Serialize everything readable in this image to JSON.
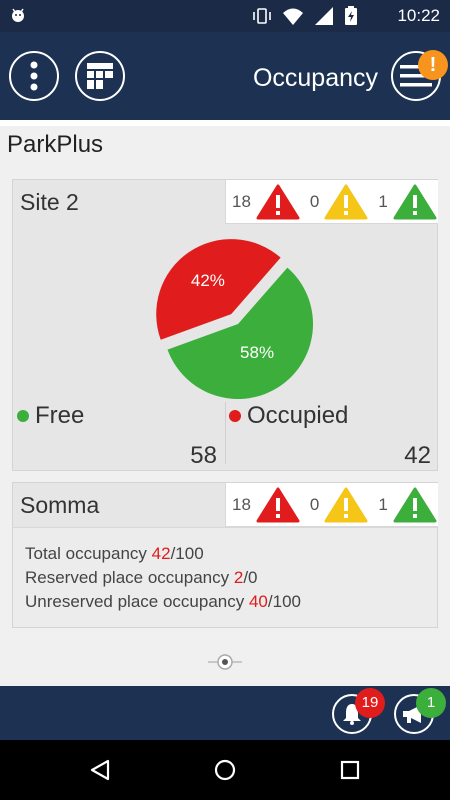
{
  "status_bar": {
    "time": "10:22",
    "icons": [
      "android-debug-icon",
      "vibrate-icon",
      "wifi-icon",
      "signal-icon",
      "battery-icon"
    ]
  },
  "app_bar": {
    "title": "Occupancy",
    "alert_badge": "!"
  },
  "org_name": "ParkPlus",
  "sites": [
    {
      "name": "Site 2",
      "alarms": [
        {
          "count": "18",
          "level": "critical",
          "color": "#e01c1c"
        },
        {
          "count": "0",
          "level": "warning",
          "color": "#f5c518"
        },
        {
          "count": "1",
          "level": "info",
          "color": "#3cae3c"
        }
      ],
      "pie": {
        "occupied_pct": 42,
        "free_pct": 58,
        "occupied_label": "42%",
        "free_label": "58%"
      },
      "free_label": "Free",
      "free_value": "58",
      "occupied_label": "Occupied",
      "occupied_value": "42"
    },
    {
      "name": "Somma",
      "alarms": [
        {
          "count": "18",
          "level": "critical",
          "color": "#e01c1c"
        },
        {
          "count": "0",
          "level": "warning",
          "color": "#f5c518"
        },
        {
          "count": "1",
          "level": "info",
          "color": "#3cae3c"
        }
      ],
      "summary": {
        "total_label": "Total occupancy ",
        "total_used": "42",
        "total_cap": "/100",
        "reserved_label": "Reserved place occupancy ",
        "reserved_used": "2",
        "reserved_cap": "/0",
        "unreserved_label": "Unreserved place occupancy ",
        "unreserved_used": "40",
        "unreserved_cap": "/100"
      }
    }
  ],
  "bottom_bar": {
    "notifications_count": "19",
    "announcements_count": "1"
  },
  "colors": {
    "header": "#1d3152",
    "free": "#3cae3c",
    "occupied": "#e01c1c",
    "alert_orange": "#f7941d"
  }
}
